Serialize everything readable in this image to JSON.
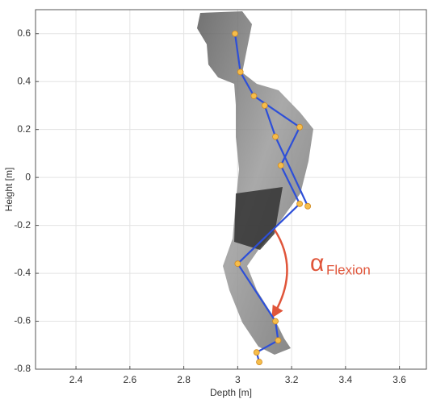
{
  "chart_data": {
    "type": "line",
    "x_label": "Depth [m]",
    "y_label": "Height [m]",
    "annotation": {
      "symbol": "α",
      "subscript": "Flexion",
      "color": "#e0553a"
    },
    "x": [
      2.99,
      3.01,
      3.06,
      3.23,
      3.16,
      3.23,
      3.0,
      3.14,
      3.15,
      3.07,
      3.08,
      null,
      3.1,
      3.14,
      3.26
    ],
    "values": [
      0.6,
      0.44,
      0.34,
      0.21,
      0.05,
      -0.11,
      -0.36,
      -0.6,
      -0.68,
      -0.73,
      -0.77,
      null,
      0.3,
      0.17,
      -0.12
    ],
    "line_color": "#2d4fd8",
    "marker_color": "#f6bd4a",
    "xlim": [
      2.25,
      3.7
    ],
    "ylim": [
      -0.8,
      0.7
    ],
    "xticks": [
      2.4,
      2.6,
      2.8,
      3,
      3.2,
      3.4,
      3.6
    ],
    "yticks": [
      0.6,
      0.4,
      0.2,
      0,
      -0.2,
      -0.4,
      -0.6,
      -0.8
    ],
    "grid": true
  }
}
